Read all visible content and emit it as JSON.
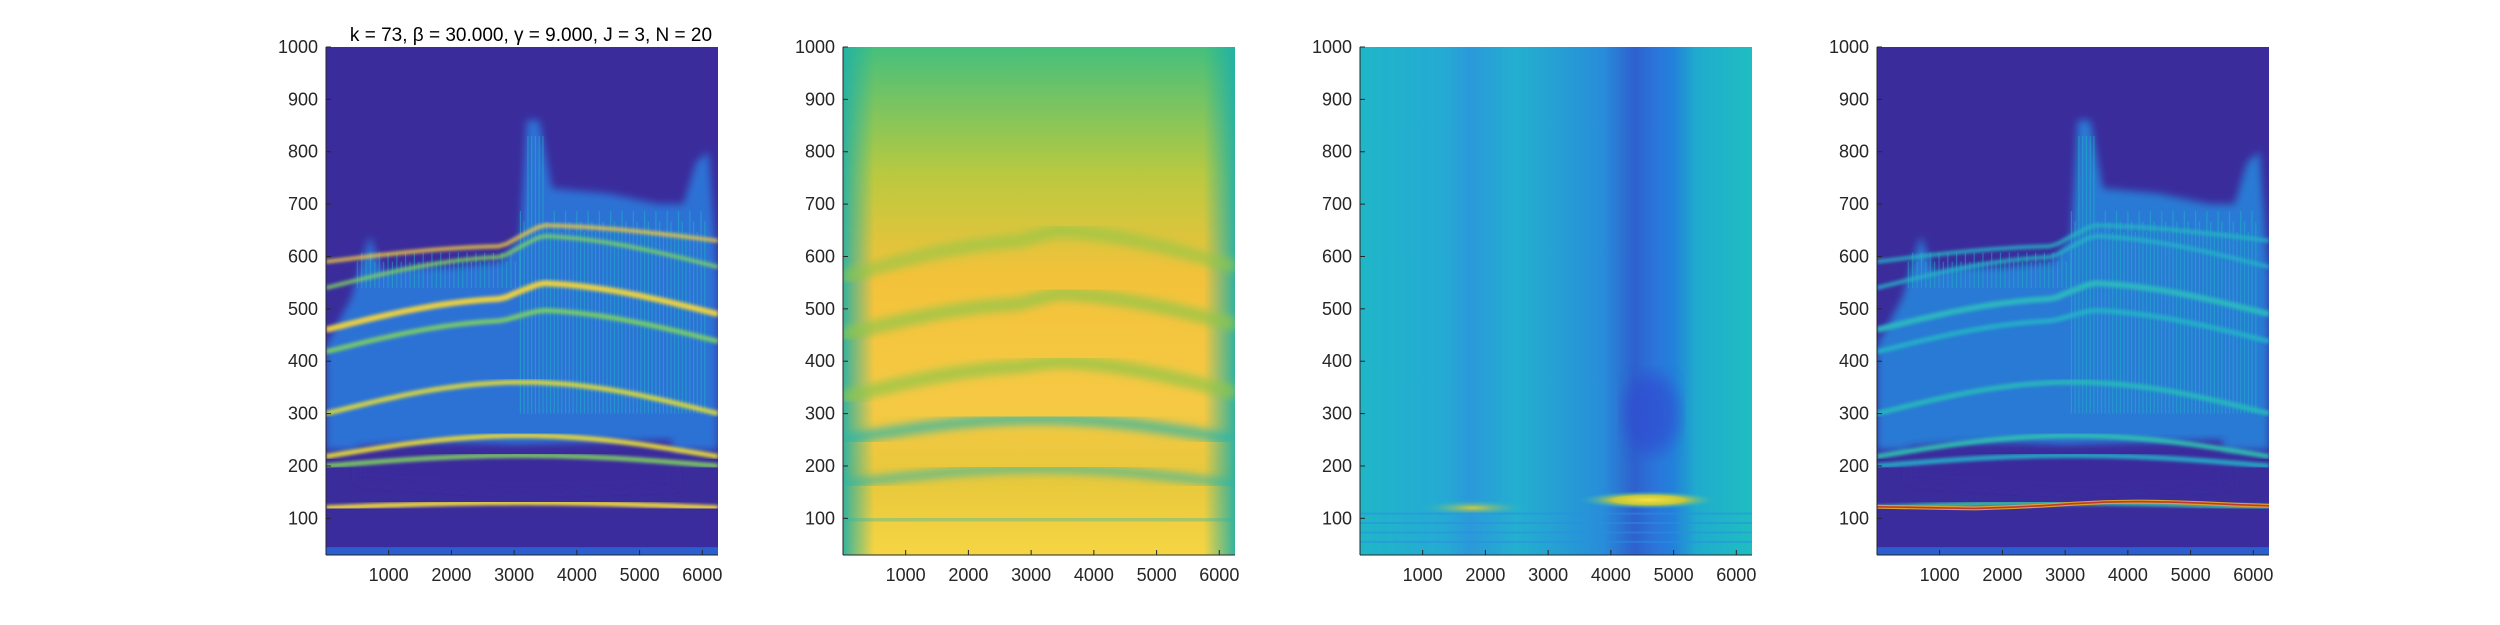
{
  "figure": {
    "title": "k = 73, β = 30.000, γ = 9.000, J = 3, N = 20"
  },
  "chart_data": [
    {
      "type": "heatmap",
      "title": "k = 73, β = 30.000, γ = 9.000, J = 3, N = 20",
      "xlabel": "",
      "ylabel": "",
      "xlim": [
        1,
        6250
      ],
      "ylim": [
        30,
        1000
      ],
      "x_ticks": [
        1000,
        2000,
        3000,
        4000,
        5000,
        6000
      ],
      "y_ticks": [
        100,
        200,
        300,
        400,
        500,
        600,
        700,
        800,
        900,
        1000
      ],
      "colormap": "parula",
      "colors": {
        "low": "#3b2c9c",
        "mid": "#20b3c0",
        "high": "#f9e03a"
      },
      "description_bands_y": [
        130,
        215,
        265,
        380,
        465,
        550,
        640
      ]
    },
    {
      "type": "heatmap",
      "title": "",
      "xlabel": "",
      "ylabel": "",
      "xlim": [
        1,
        6250
      ],
      "ylim": [
        30,
        1000
      ],
      "x_ticks": [
        1000,
        2000,
        3000,
        4000,
        5000,
        6000
      ],
      "y_ticks": [
        100,
        200,
        300,
        400,
        500,
        600,
        700,
        800,
        900,
        1000
      ],
      "colormap": "parula",
      "colors": {
        "low": "#28b4b8",
        "mid": "#9dc64b",
        "high": "#f6c540"
      }
    },
    {
      "type": "heatmap",
      "title": "",
      "xlabel": "",
      "ylabel": "",
      "xlim": [
        1,
        6250
      ],
      "ylim": [
        30,
        1000
      ],
      "x_ticks": [
        1000,
        2000,
        3000,
        4000,
        5000,
        6000
      ],
      "y_ticks": [
        100,
        200,
        300,
        400,
        500,
        600,
        700,
        800,
        900,
        1000
      ],
      "colormap": "parula",
      "colors": {
        "low": "#3c3fc8",
        "mid": "#1fb3c6",
        "high": "#f7e040"
      }
    },
    {
      "type": "heatmap",
      "title": "",
      "xlabel": "",
      "ylabel": "",
      "xlim": [
        1,
        6250
      ],
      "ylim": [
        30,
        1000
      ],
      "x_ticks": [
        1000,
        2000,
        3000,
        4000,
        5000,
        6000
      ],
      "y_ticks": [
        100,
        200,
        300,
        400,
        500,
        600,
        700,
        800,
        900,
        1000
      ],
      "colormap": "parula",
      "colors": {
        "low": "#3b2c9c",
        "mid": "#1aa8d2",
        "high": "#f0d040",
        "overlay_line": "#c0392b"
      },
      "overlay_line_y": [
        122,
        121,
        120,
        119,
        121,
        124,
        128,
        131,
        132,
        131,
        129,
        126,
        124
      ]
    }
  ]
}
